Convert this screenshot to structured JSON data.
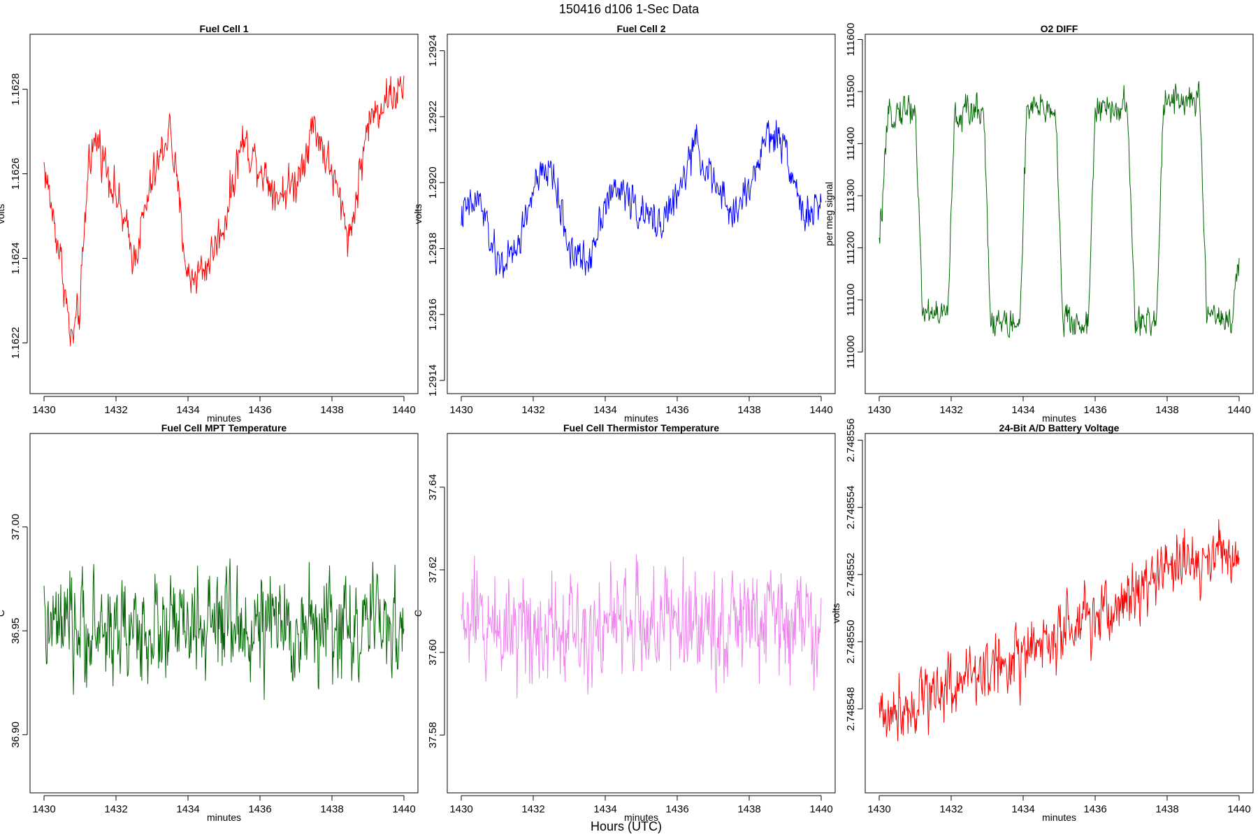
{
  "figure": {
    "title": "150416   d106   1-Sec Data",
    "xlabel_outer": "Hours (UTC)"
  },
  "chart_data": [
    {
      "type": "line",
      "title": "Fuel Cell 1",
      "xlabel": "minutes",
      "ylabel": "volts",
      "color": "#ff0000",
      "xlim": [
        1430,
        1440
      ],
      "ylim": [
        1.16208,
        1.16293
      ],
      "x_ticks": [
        1430,
        1432,
        1434,
        1436,
        1438,
        1440
      ],
      "x_tick_labels": [
        "1430",
        "1432",
        "1434",
        "1436",
        "1438",
        "1440"
      ],
      "y_ticks": [
        1.1622,
        1.1624,
        1.1626,
        1.1628
      ],
      "y_tick_labels": [
        "1.1622",
        "1.1624",
        "1.1626",
        "1.1628"
      ],
      "series": [
        {
          "name": "Fuel Cell 1",
          "x": [
            1430,
            1430.5,
            1430.75,
            1431,
            1431.25,
            1431.5,
            1432,
            1432.5,
            1433,
            1433.5,
            1434,
            1434.5,
            1435,
            1435.5,
            1436,
            1436.5,
            1437,
            1437.5,
            1438,
            1438.5,
            1439,
            1439.5,
            1440
          ],
          "values": [
            1.16262,
            1.16238,
            1.1622,
            1.16228,
            1.16265,
            1.16268,
            1.16255,
            1.1624,
            1.16258,
            1.16271,
            1.16235,
            1.16238,
            1.16248,
            1.16268,
            1.16262,
            1.16255,
            1.16258,
            1.16272,
            1.1626,
            1.16245,
            1.16272,
            1.16278,
            1.1628
          ],
          "noise": 3.5e-05
        }
      ]
    },
    {
      "type": "line",
      "title": "Fuel Cell 2",
      "xlabel": "minutes",
      "ylabel": "volts",
      "color": "#0000ff",
      "xlim": [
        1430,
        1440
      ],
      "ylim": [
        1.29136,
        1.29245
      ],
      "x_ticks": [
        1430,
        1432,
        1434,
        1436,
        1438,
        1440
      ],
      "x_tick_labels": [
        "1430",
        "1432",
        "1434",
        "1436",
        "1438",
        "1440"
      ],
      "y_ticks": [
        1.2914,
        1.2916,
        1.2918,
        1.292,
        1.2922,
        1.2924
      ],
      "y_tick_labels": [
        "1.2914",
        "1.2916",
        "1.2918",
        "1.2920",
        "1.2922",
        "1.2924"
      ],
      "series": [
        {
          "name": "Fuel Cell 2",
          "x": [
            1430,
            1430.5,
            1431,
            1431.5,
            1432,
            1432.5,
            1433,
            1433.5,
            1434,
            1434.5,
            1435,
            1435.5,
            1436,
            1436.5,
            1437,
            1437.5,
            1438,
            1438.5,
            1439,
            1439.5,
            1440
          ],
          "values": [
            1.2919,
            1.29195,
            1.29175,
            1.29178,
            1.29198,
            1.29205,
            1.2918,
            1.29175,
            1.29195,
            1.29198,
            1.2919,
            1.29188,
            1.29195,
            1.29212,
            1.292,
            1.2919,
            1.29198,
            1.29215,
            1.29212,
            1.2919,
            1.29192
          ],
          "noise": 4e-05
        }
      ]
    },
    {
      "type": "line",
      "title": "O2 DIFF",
      "xlabel": "minutes",
      "ylabel": "per meg signal",
      "color": "#006400",
      "xlim": [
        1430,
        1440
      ],
      "ylim": [
        110920,
        111610
      ],
      "x_ticks": [
        1430,
        1432,
        1434,
        1436,
        1438,
        1440
      ],
      "x_tick_labels": [
        "1430",
        "1432",
        "1434",
        "1436",
        "1438",
        "1440"
      ],
      "y_ticks": [
        111000,
        111100,
        111200,
        111300,
        111400,
        111500,
        111600
      ],
      "y_tick_labels": [
        "111000",
        "111100",
        "111200",
        "111300",
        "111400",
        "111500",
        "111600"
      ],
      "series": [
        {
          "name": "O2 DIFF",
          "x": [
            1430,
            1430.2,
            1430.3,
            1431.0,
            1431.2,
            1431.9,
            1432.1,
            1432.9,
            1433.1,
            1433.9,
            1434.1,
            1434.9,
            1435.1,
            1435.8,
            1436.0,
            1436.9,
            1437.1,
            1437.7,
            1437.9,
            1438.9,
            1439.1,
            1439.8,
            1440
          ],
          "values": [
            111200,
            111400,
            111460,
            111470,
            111080,
            111070,
            111450,
            111470,
            111060,
            111050,
            111460,
            111470,
            111060,
            111050,
            111460,
            111470,
            111060,
            111050,
            111490,
            111480,
            111080,
            111060,
            111170
          ],
          "noise": 22
        }
      ]
    },
    {
      "type": "line",
      "title": "Fuel Cell MPT Temperature",
      "xlabel": "minutes",
      "ylabel": "C",
      "color": "#006400",
      "xlim": [
        1430,
        1440
      ],
      "ylim": [
        36.872,
        37.045
      ],
      "x_ticks": [
        1430,
        1432,
        1434,
        1436,
        1438,
        1440
      ],
      "x_tick_labels": [
        "1430",
        "1432",
        "1434",
        "1436",
        "1438",
        "1440"
      ],
      "y_ticks": [
        36.9,
        36.95,
        37.0
      ],
      "y_tick_labels": [
        "36.90",
        "36.95",
        "37.00"
      ],
      "series": [
        {
          "name": "Fuel Cell MPT Temperature",
          "x": [
            1430,
            1440
          ],
          "values": [
            36.95,
            36.952
          ],
          "noise": 0.018
        }
      ]
    },
    {
      "type": "line",
      "title": "Fuel Cell Thermistor Temperature",
      "xlabel": "minutes",
      "ylabel": "C",
      "color": "#ee82ee",
      "xlim": [
        1430,
        1440
      ],
      "ylim": [
        37.566,
        37.653
      ],
      "x_ticks": [
        1430,
        1432,
        1434,
        1436,
        1438,
        1440
      ],
      "x_tick_labels": [
        "1430",
        "1432",
        "1434",
        "1436",
        "1438",
        "1440"
      ],
      "y_ticks": [
        37.58,
        37.6,
        37.62,
        37.64
      ],
      "y_tick_labels": [
        "37.58",
        "37.60",
        "37.62",
        "37.64"
      ],
      "series": [
        {
          "name": "Fuel Cell Thermistor Temperature",
          "x": [
            1430,
            1440
          ],
          "values": [
            37.607,
            37.607
          ],
          "noise": 0.0095
        }
      ]
    },
    {
      "type": "line",
      "title": "24-Bit A/D Battery Voltage",
      "xlabel": "minutes",
      "ylabel": "volts",
      "color": "#ff0000",
      "xlim": [
        1430,
        1440
      ],
      "ylim": [
        2.7485455,
        2.7485562
      ],
      "x_ticks": [
        1430,
        1432,
        1434,
        1436,
        1438,
        1440
      ],
      "x_tick_labels": [
        "1430",
        "1432",
        "1434",
        "1436",
        "1438",
        "1440"
      ],
      "y_ticks": [
        2.748548,
        2.74855,
        2.748552,
        2.748554,
        2.748556
      ],
      "y_tick_labels": [
        "2.748548",
        "2.748550",
        "2.748552",
        "2.748554",
        "2.748556"
      ],
      "series": [
        {
          "name": "24-Bit A/D Battery Voltage",
          "x": [
            1430,
            1432,
            1434,
            1436,
            1438,
            1440
          ],
          "values": [
            2.7485478,
            2.7485488,
            2.7485496,
            2.7485506,
            2.7485522,
            2.7485527
          ],
          "noise": 7e-07
        }
      ]
    }
  ]
}
